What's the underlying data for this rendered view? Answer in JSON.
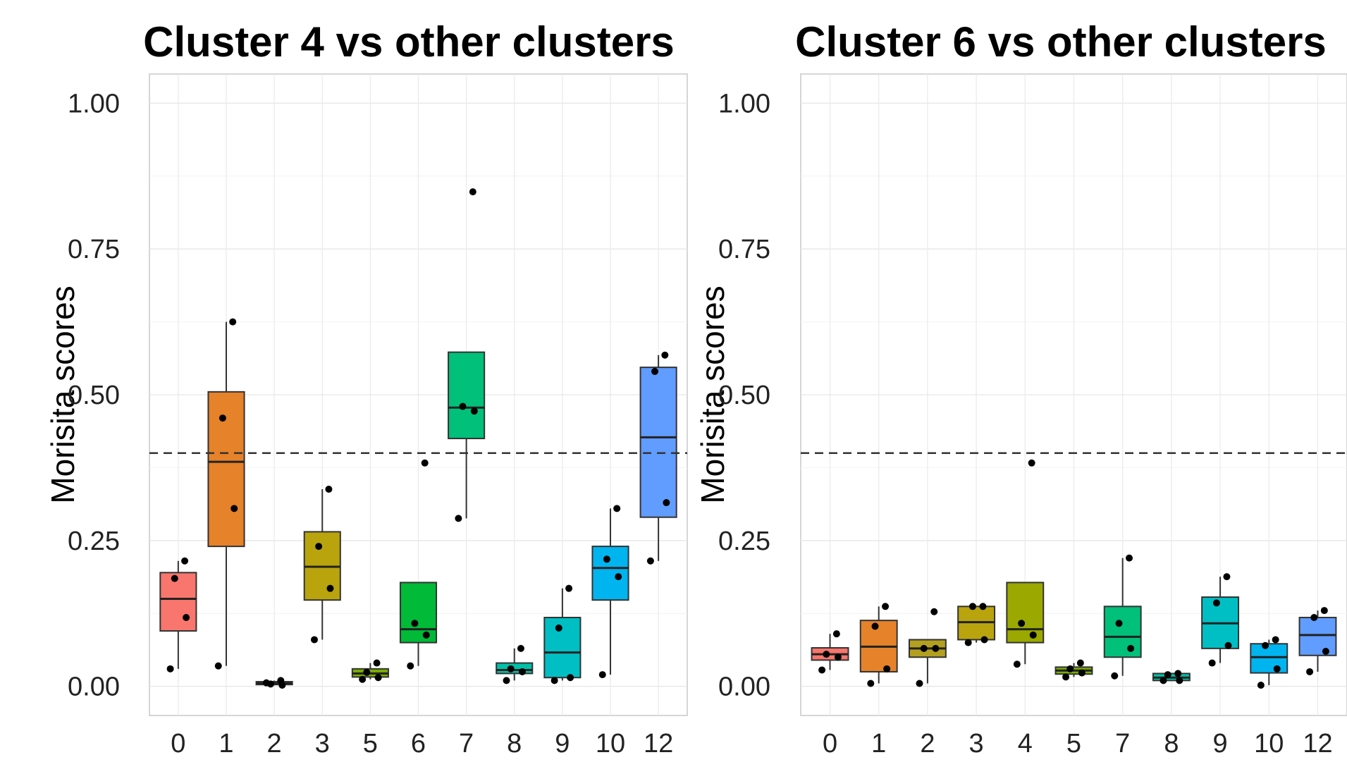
{
  "chart_data": [
    {
      "type": "box",
      "title": "Cluster 4 vs other clusters",
      "xlabel": "",
      "ylabel": "Morisita scores",
      "ylim": [
        -0.05,
        1.05
      ],
      "yticks": [
        "0.00",
        "0.25",
        "0.50",
        "0.75",
        "1.00"
      ],
      "threshold": 0.4,
      "categories": [
        "0",
        "1",
        "2",
        "3",
        "5",
        "6",
        "7",
        "8",
        "9",
        "10",
        "12"
      ],
      "boxes": [
        {
          "cat": "0",
          "color": "#F8766D",
          "lower_whisker": 0.03,
          "q1": 0.095,
          "median": 0.15,
          "q3": 0.195,
          "upper_whisker": 0.215,
          "points": [
            0.215,
            0.185,
            0.118,
            0.03
          ]
        },
        {
          "cat": "1",
          "color": "#E6822A",
          "lower_whisker": 0.035,
          "q1": 0.24,
          "median": 0.385,
          "q3": 0.505,
          "upper_whisker": 0.625,
          "points": [
            0.625,
            0.46,
            0.305,
            0.035
          ]
        },
        {
          "cat": "2",
          "color": "#B4A020",
          "lower_whisker": 0.002,
          "q1": 0.003,
          "median": 0.005,
          "q3": 0.008,
          "upper_whisker": 0.01,
          "points": [
            0.01,
            0.004,
            0.002,
            0.006
          ]
        },
        {
          "cat": "3",
          "color": "#B9A40E",
          "lower_whisker": 0.08,
          "q1": 0.148,
          "median": 0.205,
          "q3": 0.265,
          "upper_whisker": 0.338,
          "points": [
            0.338,
            0.24,
            0.168,
            0.08
          ]
        },
        {
          "cat": "5",
          "color": "#7CAE00",
          "lower_whisker": 0.012,
          "q1": 0.016,
          "median": 0.022,
          "q3": 0.03,
          "upper_whisker": 0.04,
          "points": [
            0.04,
            0.024,
            0.015,
            0.012
          ]
        },
        {
          "cat": "6",
          "color": "#00BA38",
          "lower_whisker": 0.035,
          "q1": 0.075,
          "median": 0.098,
          "q3": 0.178,
          "upper_whisker": 0.178,
          "points": [
            0.383,
            0.108,
            0.088,
            0.035
          ]
        },
        {
          "cat": "7",
          "color": "#00C07A",
          "lower_whisker": 0.288,
          "q1": 0.425,
          "median": 0.478,
          "q3": 0.573,
          "upper_whisker": 0.573,
          "points": [
            0.848,
            0.48,
            0.472,
            0.288
          ]
        },
        {
          "cat": "8",
          "color": "#00C1A8",
          "lower_whisker": 0.01,
          "q1": 0.022,
          "median": 0.028,
          "q3": 0.04,
          "upper_whisker": 0.065,
          "points": [
            0.065,
            0.03,
            0.025,
            0.01
          ]
        },
        {
          "cat": "9",
          "color": "#00BFC4",
          "lower_whisker": 0.01,
          "q1": 0.015,
          "median": 0.058,
          "q3": 0.118,
          "upper_whisker": 0.168,
          "points": [
            0.168,
            0.1,
            0.015,
            0.01
          ]
        },
        {
          "cat": "10",
          "color": "#00B4EF",
          "lower_whisker": 0.02,
          "q1": 0.148,
          "median": 0.203,
          "q3": 0.24,
          "upper_whisker": 0.305,
          "points": [
            0.305,
            0.218,
            0.188,
            0.02
          ]
        },
        {
          "cat": "12",
          "color": "#619CFF",
          "lower_whisker": 0.215,
          "q1": 0.29,
          "median": 0.427,
          "q3": 0.547,
          "upper_whisker": 0.568,
          "points": [
            0.568,
            0.54,
            0.315,
            0.215
          ]
        }
      ]
    },
    {
      "type": "box",
      "title": "Cluster 6 vs other clusters",
      "xlabel": "",
      "ylabel": "Morisita scores",
      "ylim": [
        -0.05,
        1.05
      ],
      "yticks": [
        "0.00",
        "0.25",
        "0.50",
        "0.75",
        "1.00"
      ],
      "threshold": 0.4,
      "categories": [
        "0",
        "1",
        "2",
        "3",
        "4",
        "5",
        "7",
        "8",
        "9",
        "10",
        "12"
      ],
      "boxes": [
        {
          "cat": "0",
          "color": "#F8766D",
          "lower_whisker": 0.028,
          "q1": 0.045,
          "median": 0.055,
          "q3": 0.066,
          "upper_whisker": 0.09,
          "points": [
            0.09,
            0.055,
            0.05,
            0.028
          ]
        },
        {
          "cat": "1",
          "color": "#E6822A",
          "lower_whisker": 0.005,
          "q1": 0.025,
          "median": 0.068,
          "q3": 0.113,
          "upper_whisker": 0.137,
          "points": [
            0.137,
            0.103,
            0.03,
            0.005
          ]
        },
        {
          "cat": "2",
          "color": "#B4A020",
          "lower_whisker": 0.005,
          "q1": 0.05,
          "median": 0.065,
          "q3": 0.08,
          "upper_whisker": 0.08,
          "points": [
            0.128,
            0.065,
            0.065,
            0.005
          ]
        },
        {
          "cat": "3",
          "color": "#B9A40E",
          "lower_whisker": 0.075,
          "q1": 0.08,
          "median": 0.11,
          "q3": 0.137,
          "upper_whisker": 0.137,
          "points": [
            0.137,
            0.137,
            0.08,
            0.075
          ]
        },
        {
          "cat": "4",
          "color": "#9AA800",
          "lower_whisker": 0.038,
          "q1": 0.075,
          "median": 0.098,
          "q3": 0.178,
          "upper_whisker": 0.178,
          "points": [
            0.383,
            0.108,
            0.088,
            0.038
          ]
        },
        {
          "cat": "5",
          "color": "#7CAE00",
          "lower_whisker": 0.016,
          "q1": 0.021,
          "median": 0.027,
          "q3": 0.033,
          "upper_whisker": 0.04,
          "points": [
            0.04,
            0.03,
            0.023,
            0.016
          ]
        },
        {
          "cat": "7",
          "color": "#00C07A",
          "lower_whisker": 0.018,
          "q1": 0.05,
          "median": 0.085,
          "q3": 0.137,
          "upper_whisker": 0.22,
          "points": [
            0.22,
            0.108,
            0.065,
            0.018
          ]
        },
        {
          "cat": "8",
          "color": "#00C1A8",
          "lower_whisker": 0.01,
          "q1": 0.01,
          "median": 0.015,
          "q3": 0.022,
          "upper_whisker": 0.022,
          "points": [
            0.022,
            0.02,
            0.01,
            0.01
          ]
        },
        {
          "cat": "9",
          "color": "#00BFC4",
          "lower_whisker": 0.04,
          "q1": 0.065,
          "median": 0.108,
          "q3": 0.153,
          "upper_whisker": 0.188,
          "points": [
            0.188,
            0.143,
            0.07,
            0.04
          ]
        },
        {
          "cat": "10",
          "color": "#00B4EF",
          "lower_whisker": 0.002,
          "q1": 0.023,
          "median": 0.05,
          "q3": 0.073,
          "upper_whisker": 0.08,
          "points": [
            0.08,
            0.07,
            0.03,
            0.002
          ]
        },
        {
          "cat": "12",
          "color": "#619CFF",
          "lower_whisker": 0.025,
          "q1": 0.053,
          "median": 0.088,
          "q3": 0.118,
          "upper_whisker": 0.13,
          "points": [
            0.13,
            0.118,
            0.06,
            0.025
          ]
        }
      ]
    }
  ]
}
